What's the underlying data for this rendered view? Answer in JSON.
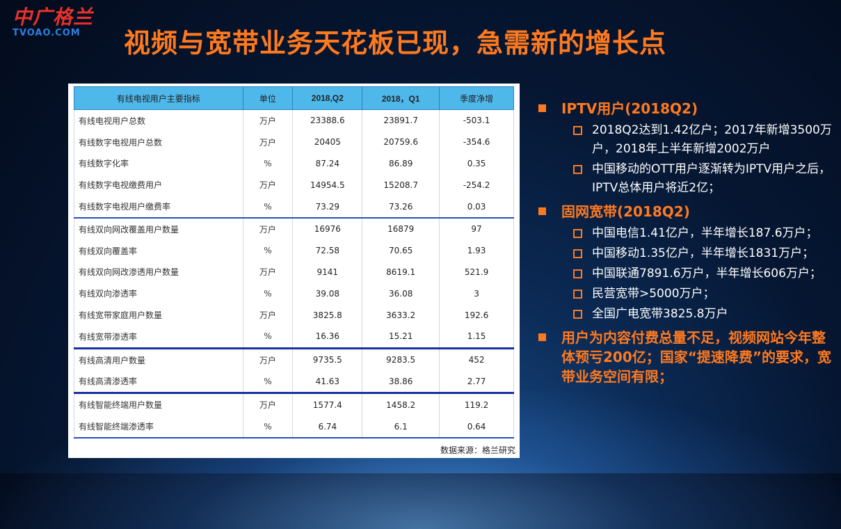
{
  "logo": {
    "cn": "中广格兰",
    "en": "TVOAO.COM"
  },
  "title": "视频与宽带业务天花板已现，急需新的增长点",
  "table": {
    "headers": [
      "有线电视用户主要指标",
      "单位",
      "2018,Q2",
      "2018，Q1",
      "季度净增"
    ],
    "rows": [
      [
        "有线电视用户总数",
        "万户",
        "23388.6",
        "23891.7",
        "-503.1"
      ],
      [
        "有线数字电视用户总数",
        "万户",
        "20405",
        "20759.6",
        "-354.6"
      ],
      [
        "有线数字化率",
        "%",
        "87.24",
        "86.89",
        "0.35"
      ],
      [
        "有线数字电视缴费用户",
        "万户",
        "14954.5",
        "15208.7",
        "-254.2"
      ],
      [
        "有线数字电视用户缴费率",
        "%",
        "73.29",
        "73.26",
        "0.03"
      ],
      [
        "有线双向网改覆盖用户数量",
        "万户",
        "16976",
        "16879",
        "97"
      ],
      [
        "有线双向覆盖率",
        "%",
        "72.58",
        "70.65",
        "1.93"
      ],
      [
        "有线双向网改渗透用户数量",
        "万户",
        "9141",
        "8619.1",
        "521.9"
      ],
      [
        "有线双向渗透率",
        "%",
        "39.08",
        "36.08",
        "3"
      ],
      [
        "有线宽带家庭用户数量",
        "万户",
        "3825.8",
        "3633.2",
        "192.6"
      ],
      [
        "有线宽带渗透率",
        "%",
        "16.36",
        "15.21",
        "1.15"
      ],
      [
        "有线高清用户数量",
        "万户",
        "9735.5",
        "9283.5",
        "452"
      ],
      [
        "有线高清渗透率",
        "%",
        "41.63",
        "38.86",
        "2.77"
      ],
      [
        "有线智能终端用户数量",
        "万户",
        "1577.4",
        "1458.2",
        "119.2"
      ],
      [
        "有线智能终端渗透率",
        "%",
        "6.74",
        "6.1",
        "0.64"
      ]
    ],
    "source": "数据来源：格兰研究"
  },
  "sections": [
    {
      "title": "IPTV用户(2018Q2)",
      "items": [
        "2018Q2达到1.42亿户；2017年新增3500万户，2018年上半年新增2002万户",
        "中国移动的OTT用户逐渐转为IPTV用户之后，IPTV总体用户将近2亿；"
      ]
    },
    {
      "title": "固网宽带(2018Q2)",
      "items": [
        "中国电信1.41亿户，半年增长187.6万户；",
        "中国移动1.35亿户，半年增长1831万户；",
        "中国联通7891.6万户，半年增长606万户；",
        "民营宽带>5000万户；",
        "全国广电宽带3825.8万户"
      ]
    },
    {
      "title": "用户为内容付费总量不足，视频网站今年整体预亏200亿；国家“提速降费”的要求，宽带业务空间有限；",
      "items": []
    }
  ]
}
